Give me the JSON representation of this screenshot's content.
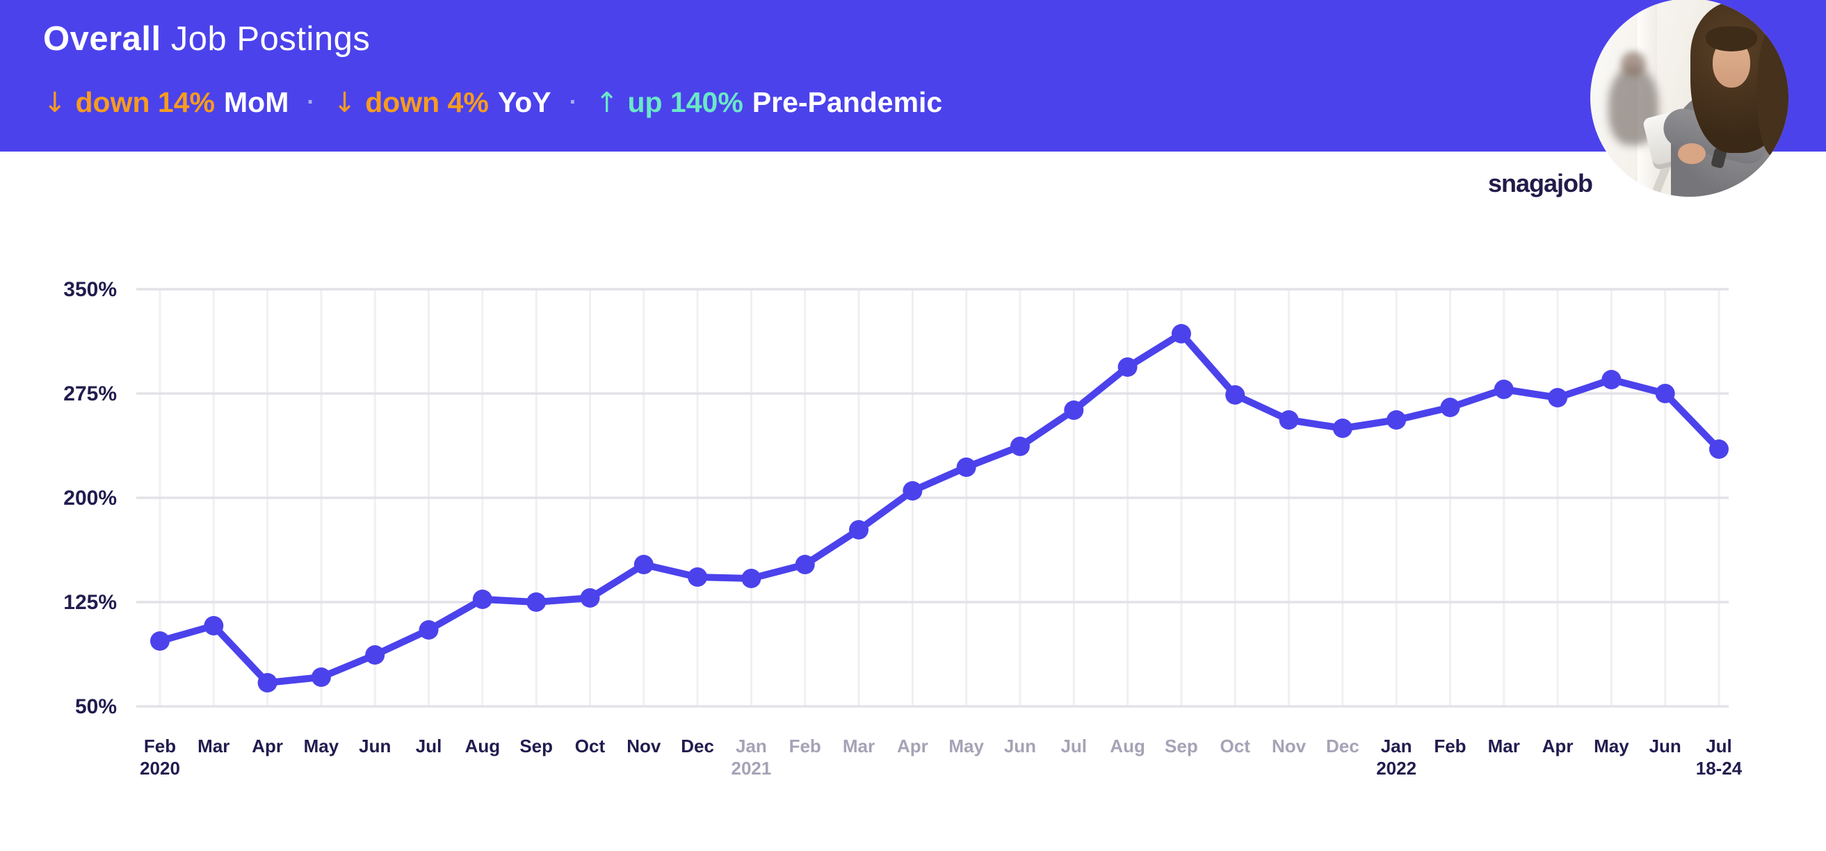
{
  "header": {
    "title_bold": "Overall",
    "title_rest": "Job Postings",
    "separator": "·",
    "stats": [
      {
        "arrow": "↓",
        "highlight": "down 14%",
        "label": "MoM",
        "direction": "down"
      },
      {
        "arrow": "↓",
        "highlight": "down 4%",
        "label": "YoY",
        "direction": "down"
      },
      {
        "arrow": "↑",
        "highlight": "up 140%",
        "label": "Pre-Pandemic",
        "direction": "up"
      }
    ]
  },
  "logo": {
    "text": "snagajob"
  },
  "colors": {
    "accent": "#4B42EC",
    "line": "#4B42EC",
    "orange": "#F79C1E",
    "mint": "#6BE8C7",
    "ink": "#211C4E",
    "muted": "#A5A3B6",
    "grid_major": "#E3E2E7",
    "grid_minor": "#F0EFF3",
    "logo": "#231B49"
  },
  "chart_data": {
    "type": "line",
    "title": "Overall Job Postings",
    "unit": "%",
    "categories": [
      "Feb",
      "Mar",
      "Apr",
      "May",
      "Jun",
      "Jul",
      "Aug",
      "Sep",
      "Oct",
      "Nov",
      "Dec",
      "Jan",
      "Feb",
      "Mar",
      "Apr",
      "May",
      "Jun",
      "Jul",
      "Aug",
      "Sep",
      "Oct",
      "Nov",
      "Dec",
      "Jan",
      "Feb",
      "Mar",
      "Apr",
      "May",
      "Jun",
      "Jul"
    ],
    "sublabels": {
      "0": "2020",
      "11": "2021",
      "23": "2022",
      "29": "18-24"
    },
    "muted_indices": [
      11,
      12,
      13,
      14,
      15,
      16,
      17,
      18,
      19,
      20,
      21,
      22
    ],
    "values": [
      97,
      108,
      67,
      71,
      87,
      105,
      127,
      125,
      128,
      152,
      143,
      142,
      152,
      177,
      205,
      222,
      237,
      263,
      294,
      318,
      274,
      256,
      250,
      256,
      265,
      278,
      272,
      285,
      275,
      235
    ],
    "yticks": [
      350,
      275,
      200,
      125,
      50
    ],
    "ytick_labels": [
      "350%",
      "275%",
      "200%",
      "125%",
      "50%"
    ],
    "ylim": [
      50,
      350
    ],
    "grid": true,
    "legend": "none",
    "line_color": "#4B42EC"
  }
}
